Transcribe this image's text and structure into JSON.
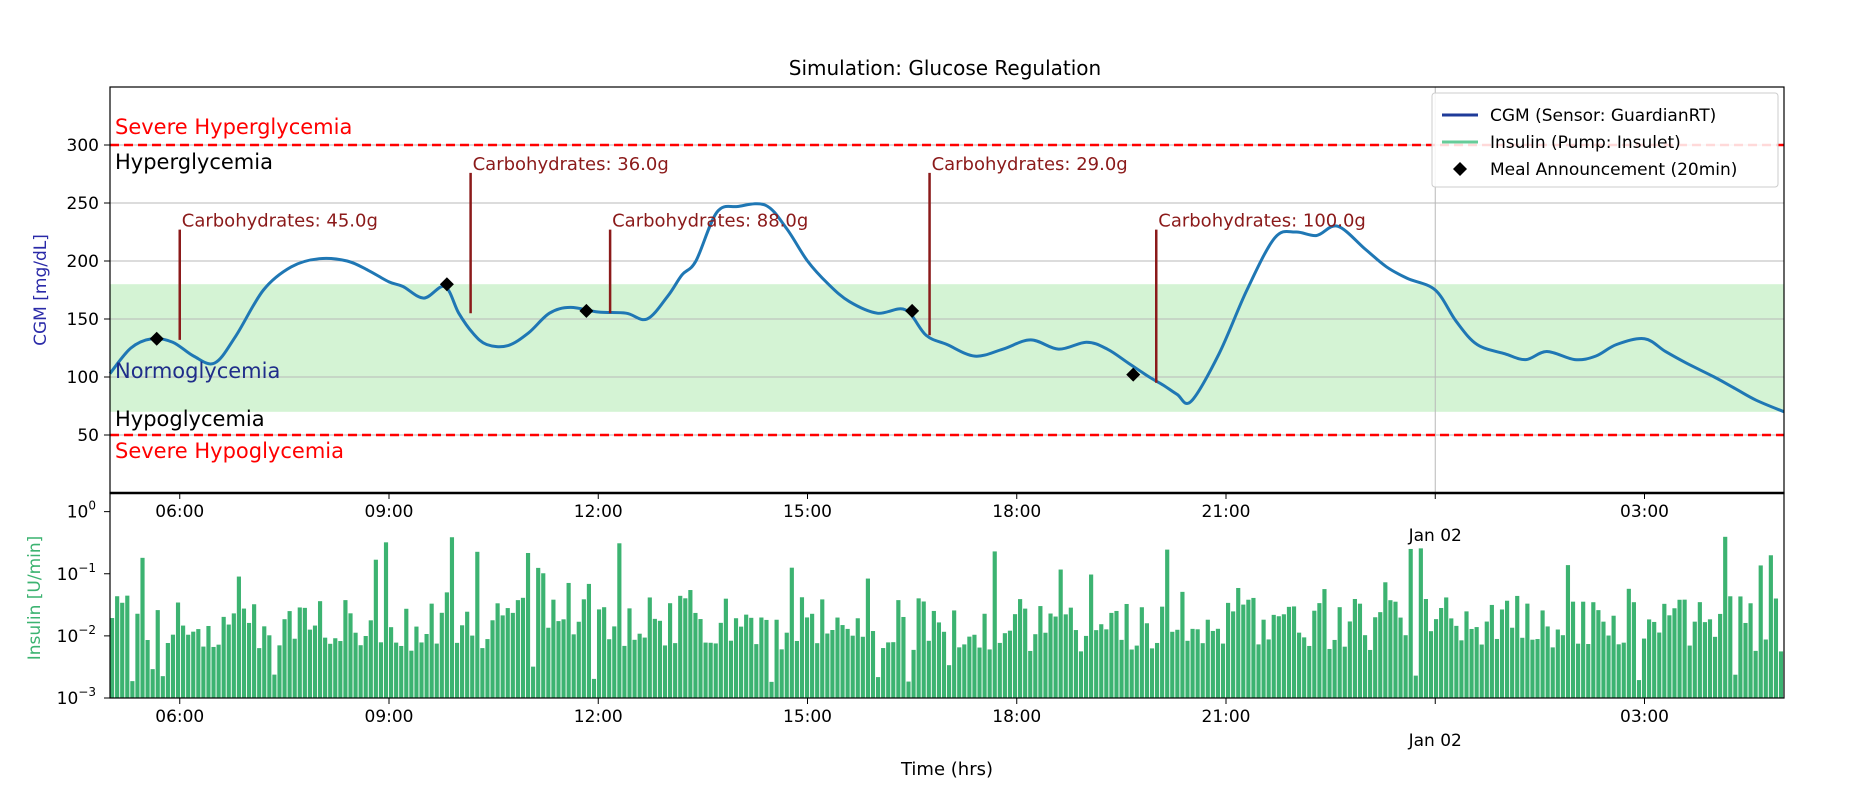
{
  "chart_data": {
    "type": "line",
    "title": "Simulation: Glucose Regulation",
    "time_axis": {
      "start_hour": 5.0,
      "end_hour": 29.0,
      "tick_hours": [
        6,
        9,
        12,
        15,
        18,
        21,
        24,
        27
      ],
      "tick_labels": [
        "06:00",
        "09:00",
        "12:00",
        "15:00",
        "18:00",
        "21:00",
        "",
        "03:00"
      ],
      "date_label": "Jan 02",
      "xlabel": "Time (hrs)"
    },
    "glucose_panel": {
      "ylabel": "CGM [mg/dL]",
      "ylim": [
        0,
        350
      ],
      "yticks": [
        50,
        100,
        150,
        200,
        250,
        300
      ],
      "normoglycemia_band": [
        70,
        180
      ],
      "thresholds": [
        {
          "value": 300,
          "label_above": "Severe Hyperglycemia",
          "label_below": "Hyperglycemia"
        },
        {
          "value": 50,
          "label_above": "Hypoglycemia",
          "label_below": "Severe Hypoglycemia"
        }
      ],
      "band_label": "Normoglycemia",
      "series": {
        "name": "CGM (Sensor: GuardianRT)",
        "color": "#1f77b4",
        "t": [
          5.0,
          5.3,
          5.6,
          5.9,
          6.2,
          6.5,
          6.8,
          7.2,
          7.6,
          8.0,
          8.4,
          8.7,
          9.0,
          9.2,
          9.5,
          9.8,
          10.0,
          10.2,
          10.4,
          10.7,
          11.0,
          11.3,
          11.6,
          12.0,
          12.4,
          12.7,
          13.0,
          13.2,
          13.4,
          13.7,
          14.0,
          14.4,
          14.7,
          15.0,
          15.3,
          15.6,
          16.0,
          16.4,
          16.7,
          17.0,
          17.4,
          17.8,
          18.2,
          18.6,
          19.0,
          19.3,
          19.6,
          19.9,
          20.1,
          20.3,
          20.5,
          20.9,
          21.3,
          21.7,
          22.0,
          22.3,
          22.6,
          23.0,
          23.3,
          23.6,
          24.0,
          24.3,
          24.6,
          25.0,
          25.3,
          25.6,
          26.0,
          26.3,
          26.6,
          27.0,
          27.3,
          27.6,
          28.0,
          28.3,
          28.6,
          29.0
        ],
        "values": [
          103,
          125,
          133,
          130,
          118,
          112,
          135,
          175,
          195,
          202,
          200,
          192,
          182,
          178,
          168,
          178,
          155,
          138,
          128,
          127,
          138,
          155,
          160,
          156,
          155,
          150,
          170,
          188,
          200,
          242,
          247,
          248,
          228,
          200,
          180,
          165,
          155,
          158,
          136,
          128,
          118,
          124,
          132,
          124,
          130,
          124,
          112,
          100,
          93,
          85,
          79,
          120,
          175,
          220,
          225,
          222,
          230,
          210,
          195,
          185,
          175,
          148,
          128,
          120,
          115,
          122,
          115,
          118,
          128,
          133,
          122,
          112,
          100,
          90,
          80,
          70
        ]
      },
      "meal_announcements": {
        "name": "Meal Announcement (20min)",
        "t": [
          5.67,
          9.83,
          11.83,
          16.5,
          19.67
        ],
        "values": [
          133,
          180,
          157,
          157,
          102
        ]
      },
      "carbohydrates": [
        {
          "t": 6.0,
          "g": 45.0,
          "label": "Carbohydrates: 45.0g",
          "line_top": 227,
          "line_bottom": 132
        },
        {
          "t": 10.17,
          "g": 36.0,
          "label": "Carbohydrates: 36.0g",
          "line_top": 276,
          "line_bottom": 155
        },
        {
          "t": 12.17,
          "g": 88.0,
          "label": "Carbohydrates: 88.0g",
          "line_top": 227,
          "line_bottom": 155
        },
        {
          "t": 16.75,
          "g": 29.0,
          "label": "Carbohydrates: 29.0g",
          "line_top": 276,
          "line_bottom": 136
        },
        {
          "t": 20.0,
          "g": 100.0,
          "label": "Carbohydrates: 100.0g",
          "line_top": 227,
          "line_bottom": 95
        }
      ]
    },
    "insulin_panel": {
      "ylabel": "Insulin [U/min]",
      "yscale": "log",
      "ylim_exp": [
        -3,
        0.3
      ],
      "ytick_exps": [
        -3,
        -2,
        -1,
        0
      ],
      "ytick_bases": [
        "10",
        "10",
        "10",
        "10"
      ],
      "ytick_exps_text": [
        "−3",
        "−2",
        "−1",
        "0"
      ],
      "bar_color": "#3cb371",
      "seed": 7
    },
    "legend": {
      "position": "top-right",
      "entries": [
        {
          "label": "CGM (Sensor: GuardianRT)",
          "color": "#1f3b99",
          "kind": "line"
        },
        {
          "label": "Insulin (Pump: Insulet)",
          "color": "#66cc99",
          "kind": "line"
        },
        {
          "label": "Meal Announcement (20min)",
          "color": "#000000",
          "kind": "diamond"
        }
      ]
    }
  }
}
